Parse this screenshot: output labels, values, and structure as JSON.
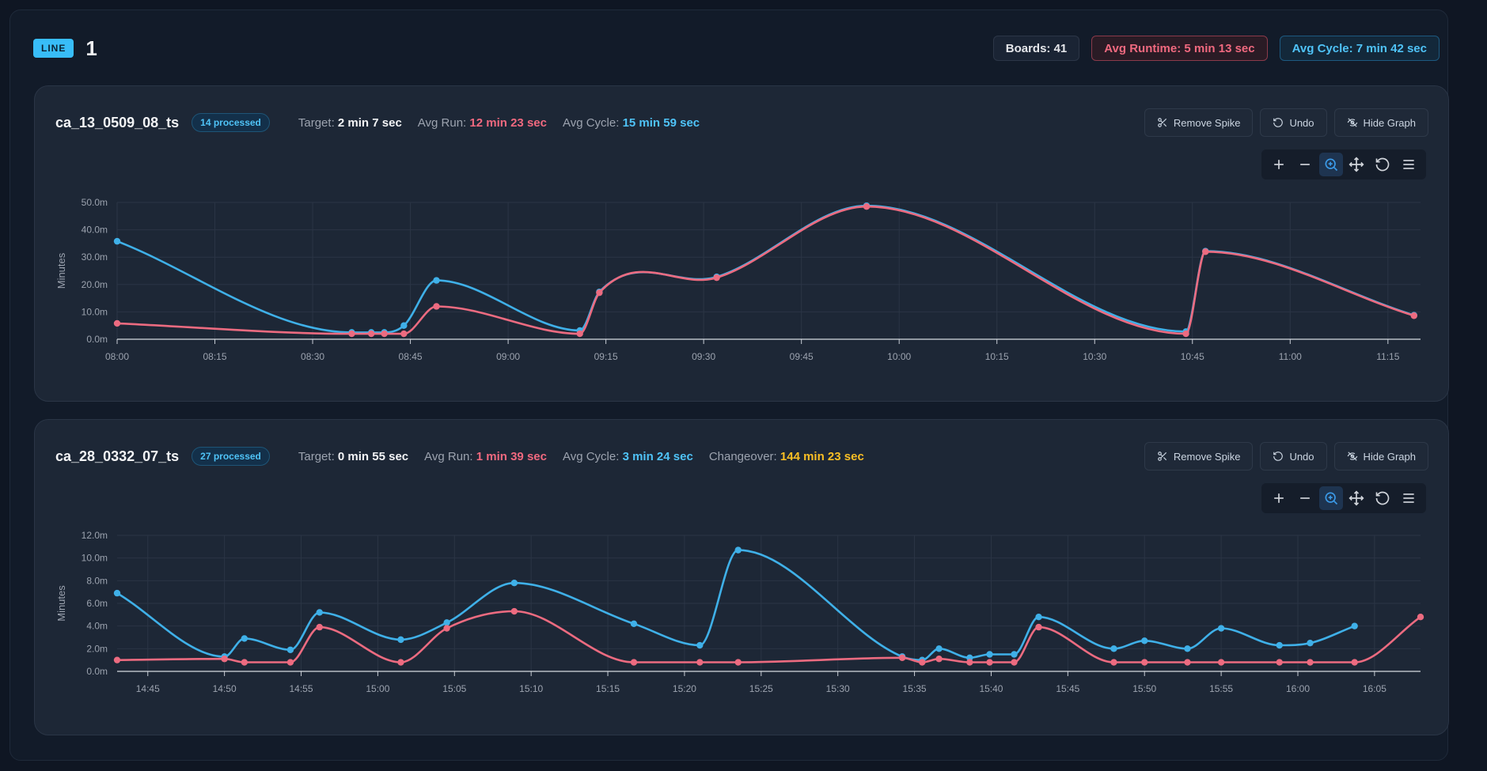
{
  "header": {
    "line_badge": "LINE",
    "line_number": "1",
    "boards": "Boards: 41",
    "avg_runtime": "Avg Runtime: 5 min 13 sec",
    "avg_cycle": "Avg Cycle: 7 min 42 sec"
  },
  "buttons": {
    "remove_spike": "Remove Spike",
    "undo": "Undo",
    "hide_graph": "Hide Graph"
  },
  "toolbar_icons": [
    "zoom-in-icon",
    "zoom-out-icon",
    "selection-zoom-icon",
    "pan-icon",
    "reset-zoom-icon",
    "menu-icon"
  ],
  "colors": {
    "cycle": "#3fb0e8",
    "runtime": "#ec6b80",
    "changeover": "#fbbf24"
  },
  "panels": [
    {
      "title": "ca_13_0509_08_ts",
      "processed": "14 processed",
      "target_label": "Target:",
      "target_value": "2 min 7 sec",
      "avg_run_label": "Avg Run:",
      "avg_run_value": "12 min 23 sec",
      "avg_cycle_label": "Avg Cycle:",
      "avg_cycle_value": "15 min 59 sec"
    },
    {
      "title": "ca_28_0332_07_ts",
      "processed": "27 processed",
      "target_label": "Target:",
      "target_value": "0 min 55 sec",
      "avg_run_label": "Avg Run:",
      "avg_run_value": "1 min 39 sec",
      "avg_cycle_label": "Avg Cycle:",
      "avg_cycle_value": "3 min 24 sec",
      "changeover_label": "Changeover:",
      "changeover_value": "144 min 23 sec"
    }
  ],
  "chart_data": [
    {
      "type": "line",
      "ylabel": "Minutes",
      "ylim": [
        0,
        50
      ],
      "yticks": [
        0,
        10,
        20,
        30,
        40,
        50
      ],
      "ytick_labels": [
        "0.0m",
        "10.0m",
        "20.0m",
        "30.0m",
        "40.0m",
        "50.0m"
      ],
      "xlim": [
        "08:00",
        "11:20"
      ],
      "xtick_labels": [
        "08:00",
        "08:15",
        "08:30",
        "08:45",
        "09:00",
        "09:15",
        "09:30",
        "09:45",
        "10:00",
        "10:15",
        "10:30",
        "10:45",
        "11:00",
        "11:15"
      ],
      "grid": true,
      "series": [
        {
          "color_key": "cycle",
          "x": [
            "08:00",
            "08:36",
            "08:39",
            "08:41",
            "08:44",
            "08:49",
            "09:11",
            "09:14",
            "09:32",
            "09:55",
            "10:44",
            "10:47",
            "11:19"
          ],
          "values": [
            35.8,
            2.5,
            2.5,
            2.5,
            5.0,
            21.5,
            3.2,
            17.3,
            22.8,
            48.8,
            2.8,
            32.2,
            8.8
          ]
        },
        {
          "color_key": "runtime",
          "x": [
            "08:00",
            "08:36",
            "08:39",
            "08:41",
            "08:44",
            "08:49",
            "09:11",
            "09:14",
            "09:32",
            "09:55",
            "10:44",
            "10:47",
            "11:19"
          ],
          "values": [
            5.8,
            2.0,
            2.0,
            2.0,
            2.0,
            12.0,
            2.0,
            17.0,
            22.5,
            48.5,
            2.0,
            32.0,
            8.6
          ]
        }
      ]
    },
    {
      "type": "line",
      "ylabel": "Minutes",
      "ylim": [
        0,
        12
      ],
      "yticks": [
        0,
        2,
        4,
        6,
        8,
        10,
        12
      ],
      "ytick_labels": [
        "0.0m",
        "2.0m",
        "4.0m",
        "6.0m",
        "8.0m",
        "10.0m",
        "12.0m"
      ],
      "xlim": [
        "14:43",
        "16:08"
      ],
      "xtick_labels": [
        "14:45",
        "14:50",
        "14:55",
        "15:00",
        "15:05",
        "15:10",
        "15:15",
        "15:20",
        "15:25",
        "15:30",
        "15:35",
        "15:40",
        "15:45",
        "15:50",
        "15:55",
        "16:00",
        "16:05"
      ],
      "grid": true,
      "series": [
        {
          "color_key": "cycle",
          "x": [
            "14:43",
            "14:50",
            "14:51.3",
            "14:54.3",
            "14:56.2",
            "15:01.5",
            "15:04.5",
            "15:08.9",
            "15:16.7",
            "15:21",
            "15:23.5",
            "15:34.2",
            "15:35.5",
            "15:36.6",
            "15:38.6",
            "15:39.9",
            "15:41.5",
            "15:43.1",
            "15:48",
            "15:50",
            "15:52.8",
            "15:55",
            "15:58.8",
            "16:00.8",
            "16:03.7"
          ],
          "values": [
            6.9,
            1.3,
            2.9,
            1.9,
            5.2,
            2.8,
            4.3,
            7.8,
            4.2,
            2.3,
            10.7,
            1.3,
            1.0,
            2.0,
            1.2,
            1.5,
            1.5,
            4.8,
            2.0,
            2.7,
            2.0,
            3.8,
            2.3,
            2.5,
            4.0
          ]
        },
        {
          "color_key": "runtime",
          "x": [
            "14:43",
            "14:50",
            "14:51.3",
            "14:54.3",
            "14:56.2",
            "15:01.5",
            "15:04.5",
            "15:08.9",
            "15:16.7",
            "15:21",
            "15:23.5",
            "15:34.2",
            "15:35.5",
            "15:36.6",
            "15:38.6",
            "15:39.9",
            "15:41.5",
            "15:43.1",
            "15:48",
            "15:50",
            "15:52.8",
            "15:55",
            "15:58.8",
            "16:00.8",
            "16:03.7",
            "16:08"
          ],
          "values": [
            1.0,
            1.1,
            0.8,
            0.8,
            3.9,
            0.8,
            3.8,
            5.3,
            0.8,
            0.8,
            0.8,
            1.2,
            0.8,
            1.1,
            0.8,
            0.8,
            0.8,
            3.9,
            0.8,
            0.8,
            0.8,
            0.8,
            0.8,
            0.8,
            0.8,
            4.8
          ]
        }
      ]
    }
  ]
}
